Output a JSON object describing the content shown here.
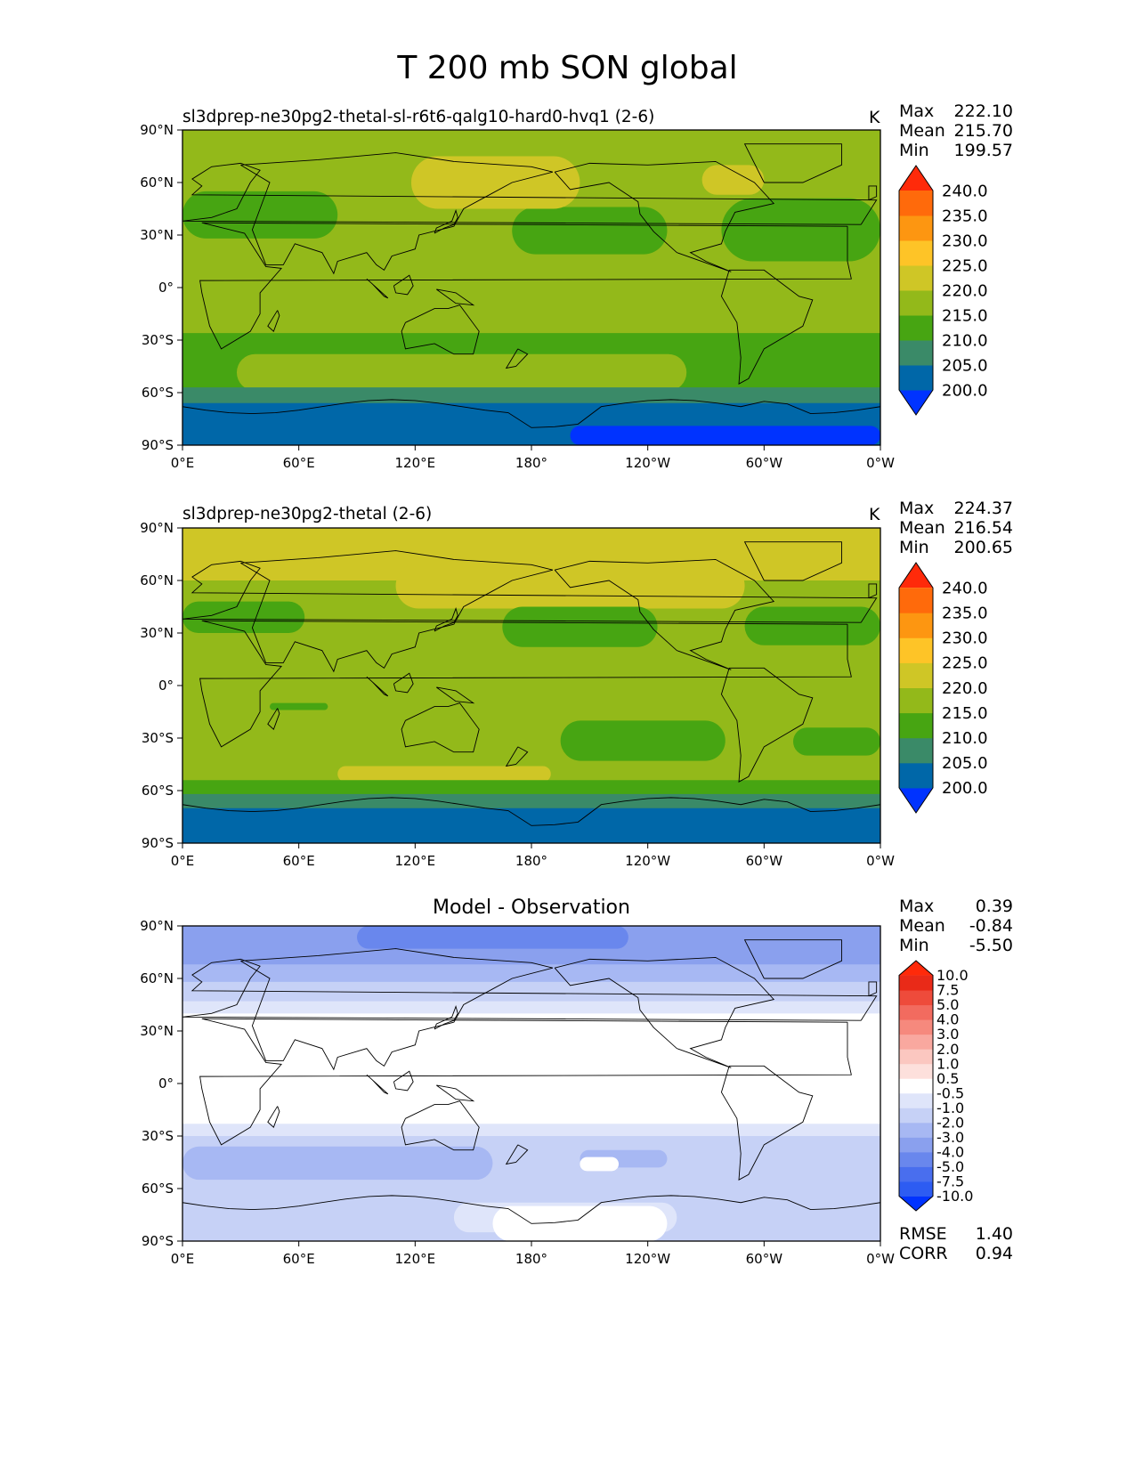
{
  "title": "T 200 mb SON global",
  "colors": {
    "abs_levels": [
      "#0033ff",
      "#0067a8",
      "#3a8a68",
      "#47a512",
      "#93b91a",
      "#cfc626",
      "#fec427",
      "#fd9611",
      "#ff6a0b",
      "#ff2a0a"
    ],
    "diff_levels": [
      "#0033ff",
      "#2d5cf2",
      "#496eee",
      "#6987ed",
      "#8aa0ee",
      "#a7b8f3",
      "#c6d1f6",
      "#dfe5fa",
      "#ffffff",
      "#fde0dc",
      "#fbc7c0",
      "#f9a89f",
      "#f6897d",
      "#f26b5f",
      "#ee4b3b",
      "#e92a18",
      "#ff2a0a"
    ]
  },
  "chart_data": [
    {
      "type": "heatmap",
      "title": "sl3dprep-ne30pg2-thetal-sl-r6t6-qalg10-hard0-hvq1 (2-6)",
      "units": "K",
      "stats": {
        "max": "222.10",
        "mean": "215.70",
        "min": "199.57"
      },
      "x_ticks": [
        "0°E",
        "60°E",
        "120°E",
        "180°",
        "120°W",
        "60°W",
        "0°W"
      ],
      "y_ticks": [
        "90°N",
        "60°N",
        "30°N",
        "0°",
        "30°S",
        "60°S",
        "90°S"
      ],
      "xlim": [
        0,
        360
      ],
      "ylim": [
        -90,
        90
      ],
      "colorbar_levels": [
        "240.0",
        "235.0",
        "230.0",
        "225.0",
        "220.0",
        "215.0",
        "210.0",
        "205.0",
        "200.0"
      ],
      "colorbar_extend": "both",
      "regions": [
        {
          "level": "215-220",
          "lon": [
            0,
            360
          ],
          "lat": [
            -90,
            90
          ]
        },
        {
          "level": "210-215",
          "lon": [
            0,
            80
          ],
          "lat": [
            28,
            55
          ]
        },
        {
          "level": "210-215",
          "lon": [
            170,
            250
          ],
          "lat": [
            19,
            46
          ]
        },
        {
          "level": "210-215",
          "lon": [
            278,
            360
          ],
          "lat": [
            15,
            51
          ]
        },
        {
          "level": "220-225",
          "lon": [
            118,
            205
          ],
          "lat": [
            45,
            75
          ]
        },
        {
          "level": "220-225",
          "lon": [
            268,
            300
          ],
          "lat": [
            53,
            70
          ]
        },
        {
          "level": "210-215",
          "lon": [
            0,
            360
          ],
          "lat": [
            -58,
            -26
          ]
        },
        {
          "level": "215-220",
          "lon": [
            28,
            260
          ],
          "lat": [
            -59,
            -38
          ]
        },
        {
          "level": "205-210",
          "lon": [
            0,
            360
          ],
          "lat": [
            -71,
            -57
          ]
        },
        {
          "level": "200-205",
          "lon": [
            0,
            360
          ],
          "lat": [
            -90,
            -66
          ]
        },
        {
          "level": "<200",
          "lon": [
            200,
            360
          ],
          "lat": [
            -90,
            -79
          ]
        }
      ]
    },
    {
      "type": "heatmap",
      "title": "sl3dprep-ne30pg2-thetal (2-6)",
      "units": "K",
      "stats": {
        "max": "224.37",
        "mean": "216.54",
        "min": "200.65"
      },
      "x_ticks": [
        "0°E",
        "60°E",
        "120°E",
        "180°",
        "120°W",
        "60°W",
        "0°W"
      ],
      "y_ticks": [
        "90°N",
        "60°N",
        "30°N",
        "0°",
        "30°S",
        "60°S",
        "90°S"
      ],
      "xlim": [
        0,
        360
      ],
      "ylim": [
        -90,
        90
      ],
      "colorbar_levels": [
        "240.0",
        "235.0",
        "230.0",
        "225.0",
        "220.0",
        "215.0",
        "210.0",
        "205.0",
        "200.0"
      ],
      "colorbar_extend": "both",
      "regions": [
        {
          "level": "215-220",
          "lon": [
            0,
            360
          ],
          "lat": [
            -90,
            90
          ]
        },
        {
          "level": "220-225",
          "lon": [
            0,
            360
          ],
          "lat": [
            60,
            90
          ]
        },
        {
          "level": "220-225",
          "lon": [
            110,
            290
          ],
          "lat": [
            44,
            70
          ]
        },
        {
          "level": "210-215",
          "lon": [
            0,
            63
          ],
          "lat": [
            30,
            48
          ]
        },
        {
          "level": "210-215",
          "lon": [
            165,
            245
          ],
          "lat": [
            22,
            45
          ]
        },
        {
          "level": "210-215",
          "lon": [
            290,
            360
          ],
          "lat": [
            23,
            45
          ]
        },
        {
          "level": "210-215",
          "lon": [
            195,
            280
          ],
          "lat": [
            -43,
            -20
          ]
        },
        {
          "level": "210-215",
          "lon": [
            315,
            360
          ],
          "lat": [
            -40,
            -24
          ]
        },
        {
          "level": "210-215",
          "lon": [
            45,
            75
          ],
          "lat": [
            -14,
            -10
          ]
        },
        {
          "level": "220-225",
          "lon": [
            80,
            190
          ],
          "lat": [
            -55,
            -46
          ]
        },
        {
          "level": "210-215",
          "lon": [
            0,
            360
          ],
          "lat": [
            -64,
            -54
          ]
        },
        {
          "level": "205-210",
          "lon": [
            0,
            360
          ],
          "lat": [
            -70,
            -62
          ]
        },
        {
          "level": "200-205",
          "lon": [
            0,
            360
          ],
          "lat": [
            -90,
            -70
          ]
        }
      ]
    },
    {
      "type": "heatmap",
      "title": "Model - Observation",
      "stats": {
        "max": "0.39",
        "mean": "-0.84",
        "min": "-5.50"
      },
      "metrics": {
        "rmse": "1.40",
        "corr": "0.94"
      },
      "x_ticks": [
        "0°E",
        "60°E",
        "120°E",
        "180°",
        "120°W",
        "60°W",
        "0°W"
      ],
      "y_ticks": [
        "90°N",
        "60°N",
        "30°N",
        "0°",
        "30°S",
        "60°S",
        "90°S"
      ],
      "xlim": [
        0,
        360
      ],
      "ylim": [
        -90,
        90
      ],
      "colorbar_levels": [
        "10.0",
        "7.5",
        "5.0",
        "4.0",
        "3.0",
        "2.0",
        "1.0",
        "0.5",
        "-0.5",
        "-1.0",
        "-2.0",
        "-3.0",
        "-4.0",
        "-5.0",
        "-7.5",
        "-10.0"
      ],
      "colorbar_extend": "both",
      "regions": [
        {
          "level": "-0.5-0.5",
          "lon": [
            0,
            360
          ],
          "lat": [
            -90,
            90
          ]
        },
        {
          "level": "-1.0--0.5",
          "lon": [
            0,
            360
          ],
          "lat": [
            40,
            90
          ]
        },
        {
          "level": "-2.0--1.0",
          "lon": [
            0,
            360
          ],
          "lat": [
            47,
            90
          ]
        },
        {
          "level": "-3.0--2.0",
          "lon": [
            0,
            360
          ],
          "lat": [
            58,
            90
          ]
        },
        {
          "level": "-4.0--3.0",
          "lon": [
            0,
            360
          ],
          "lat": [
            68,
            90
          ]
        },
        {
          "level": "-5.0--4.0",
          "lon": [
            90,
            230
          ],
          "lat": [
            77,
            90
          ]
        },
        {
          "level": "-1.0--0.5",
          "lon": [
            0,
            360
          ],
          "lat": [
            -90,
            -23
          ]
        },
        {
          "level": "-2.0--1.0",
          "lon": [
            0,
            360
          ],
          "lat": [
            -90,
            -30
          ]
        },
        {
          "level": "-3.0--2.0",
          "lon": [
            0,
            160
          ],
          "lat": [
            -55,
            -36
          ]
        },
        {
          "level": "-3.0--2.0",
          "lon": [
            205,
            250
          ],
          "lat": [
            -48,
            -38
          ]
        },
        {
          "level": "-0.5-0.5",
          "lon": [
            205,
            225
          ],
          "lat": [
            -50,
            -42
          ]
        },
        {
          "level": "-1.0--0.5",
          "lon": [
            140,
            255
          ],
          "lat": [
            -85,
            -68
          ]
        },
        {
          "level": "-0.5-0.5",
          "lon": [
            160,
            250
          ],
          "lat": [
            -90,
            -70
          ]
        }
      ]
    }
  ]
}
